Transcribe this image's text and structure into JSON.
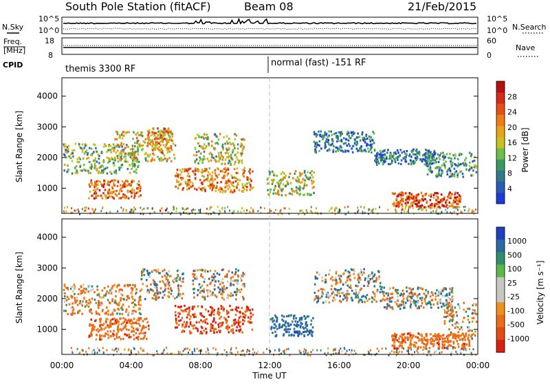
{
  "header": {
    "station": "South Pole Station (fitACF)",
    "beam": "Beam 08",
    "date": "21/Feb/2015"
  },
  "left_labels": {
    "nsky": "N.Sky",
    "freq_line1": "Freq.",
    "freq_line2": "[MHz]",
    "cpid": "CPID"
  },
  "right_labels": {
    "nsearch": "N.Search",
    "nave": "Nave"
  },
  "noise_axis": {
    "left_top": "10^5",
    "left_bottom": "10^0",
    "right_top": "10^5",
    "right_bottom": "10^0"
  },
  "freq_axis": {
    "left_top": "18",
    "left_bottom": "8",
    "right_top": "60",
    "right_bottom": "0"
  },
  "cpid_labels": [
    "themis 3300 RF",
    "normal (fast) -151 RF"
  ],
  "x_ticks": [
    "00:00",
    "04:00",
    "08:00",
    "12:00",
    "16:00",
    "20:00",
    "00:00"
  ],
  "xlabel": "Time UT",
  "power_panel": {
    "ylabel": "Slant Range [km]",
    "y_ticks": [
      "1000",
      "2000",
      "3000",
      "4000"
    ],
    "colorbar_label": "Power [dB]",
    "colorbar_ticks": [
      "4",
      "8",
      "12",
      "16",
      "20",
      "24",
      "28"
    ],
    "colors": [
      "#1f3bd6",
      "#2a5bb8",
      "#2f7a8c",
      "#3a9960",
      "#6cbf4a",
      "#c9c21e",
      "#e9a31b",
      "#ef7a16",
      "#e5501a",
      "#d42a1a",
      "#b81010"
    ]
  },
  "velocity_panel": {
    "ylabel": "Slant Range [km]",
    "y_ticks": [
      "1000",
      "2000",
      "3000",
      "4000"
    ],
    "colorbar_label": "Velocity [m s⁻¹]",
    "colorbar_ticks": [
      "1000",
      "500",
      "100",
      "25",
      "-25",
      "-100",
      "-500",
      "-1000"
    ],
    "colors": [
      "#1e3fbf",
      "#2a6aa0",
      "#2f8f6c",
      "#5db84a",
      "#c7c7c2",
      "#c7c7c2",
      "#f0901c",
      "#ea6d17",
      "#e24b14",
      "#d92010"
    ]
  },
  "chart_data": [
    {
      "type": "heatmap",
      "title": "South Pole Station (fitACF) Beam 08 21/Feb/2015",
      "quantity": "Power [dB]",
      "xlabel": "Time UT",
      "ylabel": "Slant Range [km]",
      "xlim": [
        "00:00",
        "24:00"
      ],
      "ylim": [
        180,
        4600
      ],
      "clim": [
        0,
        30
      ],
      "blobs": [
        {
          "t0": 0.0,
          "t1": 4.5,
          "r0": 1500,
          "r1": 2500,
          "db": 12
        },
        {
          "t0": 1.5,
          "t1": 4.5,
          "r0": 700,
          "r1": 1300,
          "db": 22
        },
        {
          "t0": 3.0,
          "t1": 6.5,
          "r0": 1900,
          "r1": 2900,
          "db": 16
        },
        {
          "t0": 4.8,
          "t1": 6.3,
          "r0": 2200,
          "r1": 3000,
          "db": 20
        },
        {
          "t0": 6.5,
          "t1": 11.0,
          "r0": 900,
          "r1": 1700,
          "db": 20
        },
        {
          "t0": 7.5,
          "t1": 10.5,
          "r0": 1800,
          "r1": 2800,
          "db": 14
        },
        {
          "t0": 11.8,
          "t1": 14.5,
          "r0": 800,
          "r1": 1600,
          "db": 14
        },
        {
          "t0": 14.5,
          "t1": 18.0,
          "r0": 2200,
          "r1": 2900,
          "db": 6
        },
        {
          "t0": 18.0,
          "t1": 21.5,
          "r0": 1800,
          "r1": 2300,
          "db": 6
        },
        {
          "t0": 21.0,
          "t1": 24.0,
          "r0": 1400,
          "r1": 2200,
          "db": 8
        },
        {
          "t0": 19.0,
          "t1": 23.0,
          "r0": 400,
          "r1": 900,
          "db": 24
        }
      ]
    },
    {
      "type": "heatmap",
      "title": "South Pole Station (fitACF) Beam 08 21/Feb/2015",
      "quantity": "Velocity [m s-1]",
      "xlabel": "Time UT",
      "ylabel": "Slant Range [km]",
      "xlim": [
        "00:00",
        "24:00"
      ],
      "ylim": [
        180,
        4600
      ],
      "clim": [
        -1000,
        1000
      ],
      "blobs": [
        {
          "t0": 0.0,
          "t1": 4.5,
          "r0": 1500,
          "r1": 2500,
          "v": -150
        },
        {
          "t0": 1.5,
          "t1": 5.0,
          "r0": 700,
          "r1": 1400,
          "v": -300
        },
        {
          "t0": 4.5,
          "t1": 7.0,
          "r0": 2000,
          "r1": 3000,
          "v": 0
        },
        {
          "t0": 6.5,
          "t1": 11.0,
          "r0": 900,
          "r1": 1800,
          "v": -500
        },
        {
          "t0": 7.5,
          "t1": 10.5,
          "r0": 2000,
          "r1": 3000,
          "v": 0
        },
        {
          "t0": 12.0,
          "t1": 14.5,
          "r0": 800,
          "r1": 1500,
          "v": 300
        },
        {
          "t0": 14.5,
          "t1": 18.5,
          "r0": 1900,
          "r1": 3000,
          "v": 0
        },
        {
          "t0": 18.5,
          "t1": 22.5,
          "r0": 1700,
          "r1": 2400,
          "v": 0
        },
        {
          "t0": 19.0,
          "t1": 23.5,
          "r0": 400,
          "r1": 900,
          "v": -300
        },
        {
          "t0": 22.0,
          "t1": 24.0,
          "r0": 700,
          "r1": 1900,
          "v": -100
        }
      ]
    }
  ]
}
